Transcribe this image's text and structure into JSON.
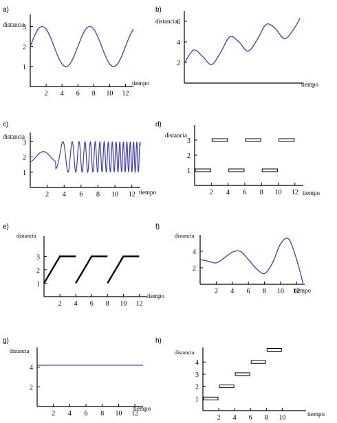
{
  "chart_data": [
    {
      "panel": "a)",
      "type": "line",
      "xlabel": "tiempo",
      "ylabel": "distancia",
      "xlim": [
        0,
        13
      ],
      "ylim": [
        0,
        3.6
      ],
      "xticks": [
        2,
        4,
        6,
        8,
        10,
        12
      ],
      "yticks": [
        1,
        2,
        3
      ],
      "x": [
        0,
        0.5,
        1,
        1.5,
        2,
        2.5,
        3,
        3.5,
        4,
        4.5,
        5,
        5.5,
        6,
        6.5,
        7,
        7.5,
        8,
        8.5,
        9,
        9.5,
        10,
        10.5,
        11,
        11.5,
        12,
        12.5,
        13
      ],
      "y": [
        2.0,
        2.5,
        2.87,
        3.0,
        2.87,
        2.5,
        2.0,
        1.5,
        1.13,
        1.0,
        1.13,
        1.5,
        2.0,
        2.5,
        2.87,
        3.0,
        2.87,
        2.5,
        2.0,
        1.5,
        1.13,
        1.0,
        1.13,
        1.5,
        2.0,
        2.5,
        2.87
      ]
    },
    {
      "panel": "b)",
      "type": "line",
      "xlabel": "tiempo",
      "ylabel": "distancia",
      "xlim": [
        0,
        13
      ],
      "ylim": [
        0,
        7
      ],
      "xticks": [],
      "yticks": [
        2,
        4,
        6
      ],
      "x": [
        0,
        1,
        2,
        3,
        4,
        5,
        6,
        7,
        8,
        9,
        10,
        11,
        12,
        12.7
      ],
      "y": [
        1.9,
        3.2,
        2.6,
        1.8,
        3.0,
        4.5,
        4.0,
        3.1,
        4.2,
        5.7,
        5.3,
        4.3,
        5.2,
        6.3
      ]
    },
    {
      "panel": "c)",
      "type": "line",
      "xlabel": "tiempo",
      "ylabel": "distancia",
      "xlim": [
        0,
        13
      ],
      "ylim": [
        0,
        3.6
      ],
      "xticks": [
        2,
        4,
        6,
        8,
        10,
        12
      ],
      "yticks": [
        1,
        2,
        3
      ],
      "x_start": 0,
      "x_end": 13,
      "y": "2 + sin-like oscillation with increasing frequency after t≈3, amplitude 1"
    },
    {
      "panel": "d)",
      "type": "step-segments",
      "xlabel": "tiempo",
      "ylabel": "distancia",
      "xlim": [
        0,
        13
      ],
      "ylim": [
        0,
        4
      ],
      "xticks": [
        2,
        4,
        6,
        8,
        10,
        12
      ],
      "yticks": [
        1,
        2,
        3
      ],
      "segments": [
        {
          "x0": 0,
          "x1": 2,
          "y": 1
        },
        {
          "x0": 2,
          "x1": 4,
          "y": 3
        },
        {
          "x0": 4,
          "x1": 6,
          "y": 1
        },
        {
          "x0": 6,
          "x1": 8,
          "y": 3
        },
        {
          "x0": 8,
          "x1": 10,
          "y": 1
        },
        {
          "x0": 10,
          "x1": 12,
          "y": 3
        }
      ]
    },
    {
      "panel": "e)",
      "type": "line-segments",
      "xlabel": "tiempo",
      "ylabel": "distancia",
      "xlim": [
        0,
        13
      ],
      "ylim": [
        0,
        4.5
      ],
      "xticks": [
        2,
        4,
        6,
        8,
        10,
        12
      ],
      "yticks": [
        1,
        2,
        3
      ],
      "segments": [
        {
          "points": [
            [
              0,
              1
            ],
            [
              2,
              3
            ],
            [
              4,
              3
            ]
          ]
        },
        {
          "points": [
            [
              4,
              1
            ],
            [
              6,
              3
            ],
            [
              8,
              3
            ]
          ]
        },
        {
          "points": [
            [
              8,
              1
            ],
            [
              10,
              3
            ],
            [
              12,
              3
            ]
          ]
        }
      ]
    },
    {
      "panel": "f)",
      "type": "line",
      "xlabel": "tiempo",
      "ylabel": "distancia",
      "xlim": [
        0,
        13
      ],
      "ylim": [
        0,
        6
      ],
      "xticks": [
        2,
        4,
        6,
        8,
        10,
        12
      ],
      "yticks": [
        2,
        4
      ],
      "x": [
        0,
        1,
        2,
        3,
        4,
        5,
        6,
        7,
        8,
        9,
        10,
        11,
        12,
        12.8
      ],
      "y": [
        3.0,
        2.8,
        2.6,
        3.2,
        3.9,
        4.0,
        3.0,
        1.9,
        1.3,
        2.6,
        4.9,
        5.5,
        3.0,
        0.1
      ]
    },
    {
      "panel": "g)",
      "type": "line",
      "xlabel": "tiempo",
      "ylabel": "distancia",
      "xlim": [
        0,
        13
      ],
      "ylim": [
        0,
        6
      ],
      "xticks": [
        2,
        4,
        6,
        8,
        10,
        12
      ],
      "yticks": [
        2,
        4
      ],
      "x": [
        0,
        13
      ],
      "y": [
        4.2,
        4.2
      ]
    },
    {
      "panel": "h)",
      "type": "step-segments",
      "xlabel": "tiempo",
      "ylabel": "distancia",
      "xlim": [
        0,
        13
      ],
      "ylim": [
        0,
        5.2
      ],
      "xticks": [
        2,
        4,
        6,
        8,
        10
      ],
      "yticks": [
        1,
        2,
        3,
        4
      ],
      "segments": [
        {
          "x0": 0,
          "x1": 2,
          "y": 1
        },
        {
          "x0": 2,
          "x1": 4,
          "y": 2
        },
        {
          "x0": 4,
          "x1": 6,
          "y": 3
        },
        {
          "x0": 6,
          "x1": 8,
          "y": 4
        },
        {
          "x0": 8,
          "x1": 10,
          "y": 5
        }
      ]
    }
  ]
}
